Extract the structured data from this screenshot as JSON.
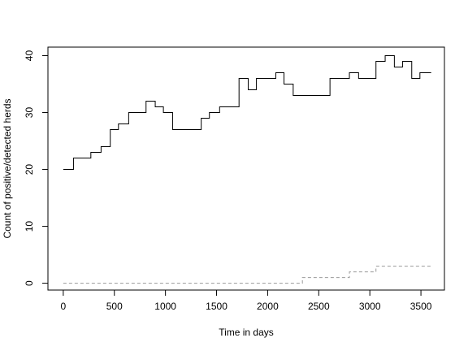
{
  "chart_data": {
    "type": "line",
    "title": "",
    "xlabel": "Time in days",
    "ylabel": "Count of positive/detected herds",
    "xlim": [
      -150,
      3730
    ],
    "ylim": [
      -1.2,
      41.5
    ],
    "x_ticks": [
      0,
      500,
      1000,
      1500,
      2000,
      2500,
      3000,
      3500
    ],
    "y_ticks": [
      0,
      10,
      20,
      30,
      40
    ],
    "grid": false,
    "legend": "none",
    "series": [
      {
        "style": "solid-step",
        "color": "#000000",
        "x": [
          0,
          100,
          270,
          370,
          460,
          540,
          640,
          810,
          900,
          980,
          1070,
          1350,
          1430,
          1530,
          1720,
          1810,
          1890,
          2080,
          2160,
          2250,
          2330,
          2410,
          2610,
          2800,
          2890,
          3060,
          3150,
          3240,
          3320,
          3410,
          3490,
          3600
        ],
        "y": [
          20,
          22,
          23,
          24,
          27,
          28,
          30,
          32,
          31,
          30,
          27,
          29,
          30,
          31,
          36,
          34,
          36,
          37,
          35,
          33,
          33,
          33,
          36,
          37,
          36,
          39,
          40,
          38,
          39,
          36,
          37,
          37
        ]
      },
      {
        "style": "dashed-step",
        "color": "#999999",
        "x": [
          0,
          2340,
          2800,
          3060,
          3600
        ],
        "y": [
          0,
          1,
          2,
          3,
          3
        ]
      }
    ]
  }
}
